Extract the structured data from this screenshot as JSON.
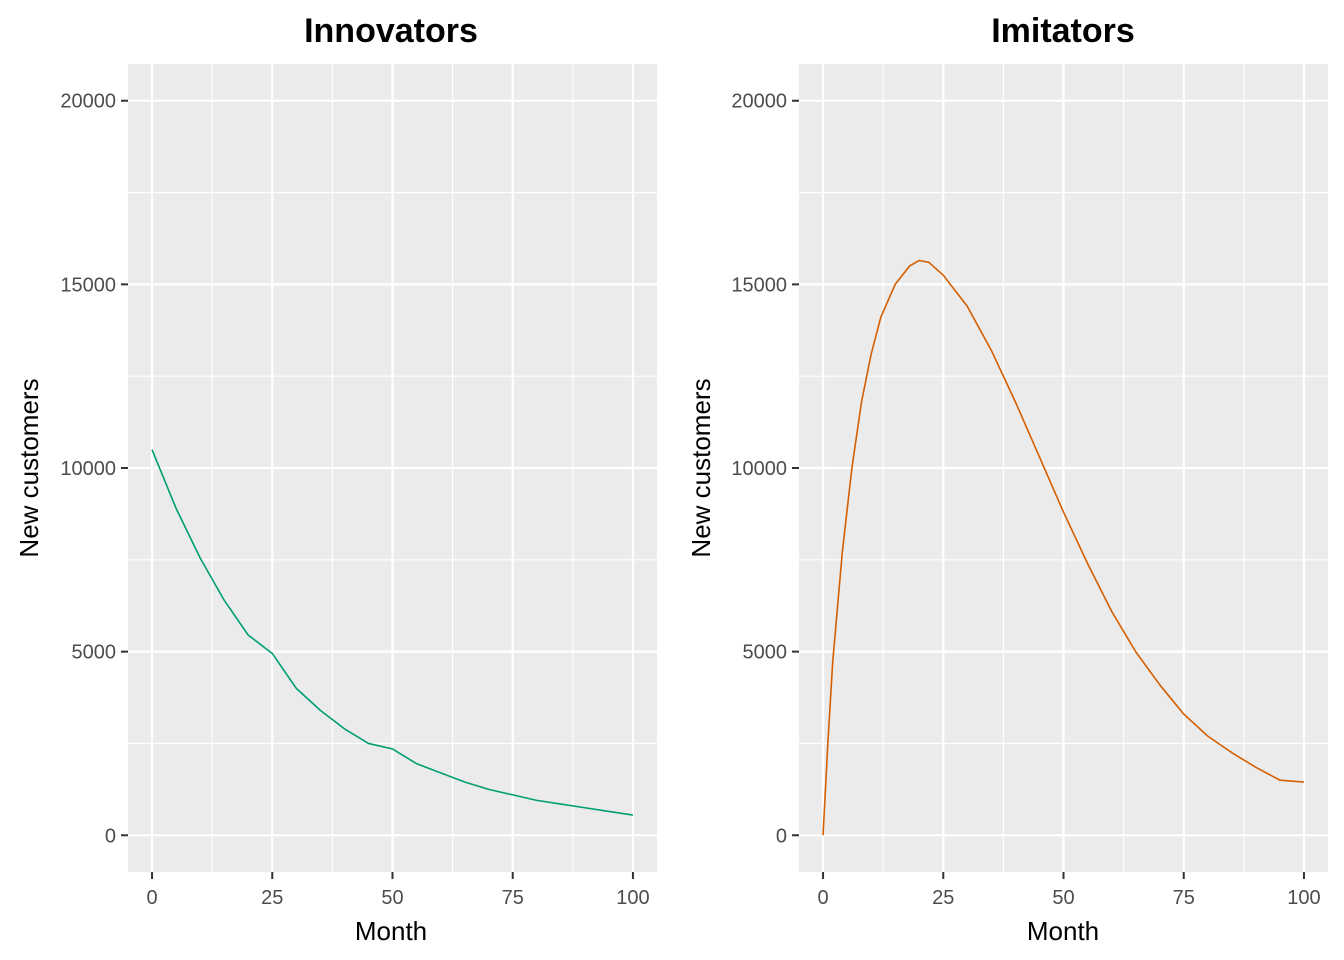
{
  "chart_data": [
    {
      "type": "line",
      "title": "Innovators",
      "xlabel": "Month",
      "ylabel": "New customers",
      "xlim": [
        -5,
        105
      ],
      "ylim": [
        -1000,
        21000
      ],
      "x_ticks": [
        0,
        25,
        50,
        75,
        100
      ],
      "x_tick_labels": [
        "0",
        "25",
        "50",
        "75",
        "100"
      ],
      "y_ticks": [
        0,
        5000,
        10000,
        15000,
        20000
      ],
      "y_tick_labels": [
        "0",
        "5000",
        "10000",
        "15000",
        "20000"
      ],
      "grid": true,
      "color": "#009E73",
      "series": [
        {
          "x": [
            0,
            5,
            10,
            15,
            20,
            25,
            30,
            35,
            40,
            45,
            50,
            55,
            60,
            65,
            70,
            75,
            80,
            85,
            90,
            95,
            100
          ],
          "values": [
            10500,
            8900,
            7550,
            6400,
            5450,
            4950,
            4000,
            3400,
            2900,
            2500,
            2350,
            1950,
            1700,
            1450,
            1250,
            1100,
            950,
            850,
            750,
            650,
            550
          ]
        }
      ]
    },
    {
      "type": "line",
      "title": "Imitators",
      "xlabel": "Month",
      "ylabel": "New customers",
      "xlim": [
        -5,
        105
      ],
      "ylim": [
        -1000,
        21000
      ],
      "x_ticks": [
        0,
        25,
        50,
        75,
        100
      ],
      "x_tick_labels": [
        "0",
        "25",
        "50",
        "75",
        "100"
      ],
      "y_ticks": [
        0,
        5000,
        10000,
        15000,
        20000
      ],
      "y_tick_labels": [
        "0",
        "5000",
        "10000",
        "15000",
        "20000"
      ],
      "grid": true,
      "color": "#D55E00",
      "series": [
        {
          "x": [
            0,
            1,
            2,
            4,
            6,
            8,
            10,
            12,
            15,
            18,
            20,
            22,
            25,
            30,
            35,
            40,
            45,
            50,
            55,
            60,
            65,
            70,
            75,
            80,
            85,
            90,
            95,
            100
          ],
          "values": [
            0,
            2500,
            4700,
            7700,
            10000,
            11800,
            13100,
            14100,
            15000,
            15500,
            15650,
            15600,
            15250,
            14400,
            13200,
            11800,
            10300,
            8800,
            7400,
            6100,
            5000,
            4100,
            3300,
            2700,
            2250,
            1850,
            1500,
            1450
          ]
        }
      ]
    }
  ]
}
